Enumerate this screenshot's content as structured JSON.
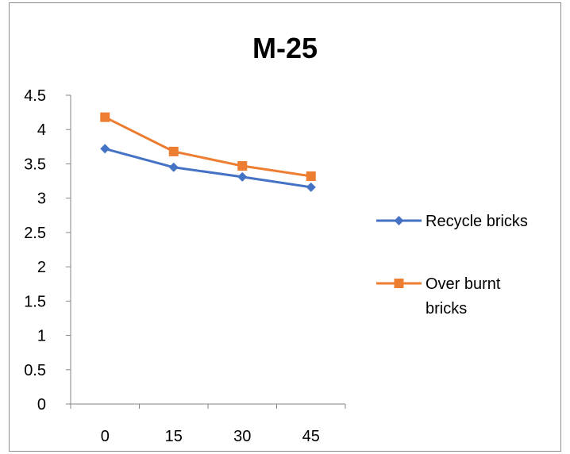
{
  "chart_data": {
    "type": "line",
    "title": "M-25",
    "xlabel": "",
    "ylabel": "",
    "categories": [
      "0",
      "15",
      "30",
      "45"
    ],
    "ylim": [
      0,
      4.5
    ],
    "y_ticks": [
      "0",
      "0.5",
      "1",
      "1.5",
      "2",
      "2.5",
      "3",
      "3.5",
      "4",
      "4.5"
    ],
    "grid": false,
    "legend_position": "right",
    "series": [
      {
        "name": "Recycle bricks",
        "values": [
          3.72,
          3.45,
          3.31,
          3.16
        ],
        "color": "#4472C4",
        "marker": "diamond"
      },
      {
        "name": "Over burnt bricks",
        "values": [
          4.18,
          3.68,
          3.47,
          3.32
        ],
        "color": "#ED7D31",
        "marker": "square"
      }
    ]
  }
}
